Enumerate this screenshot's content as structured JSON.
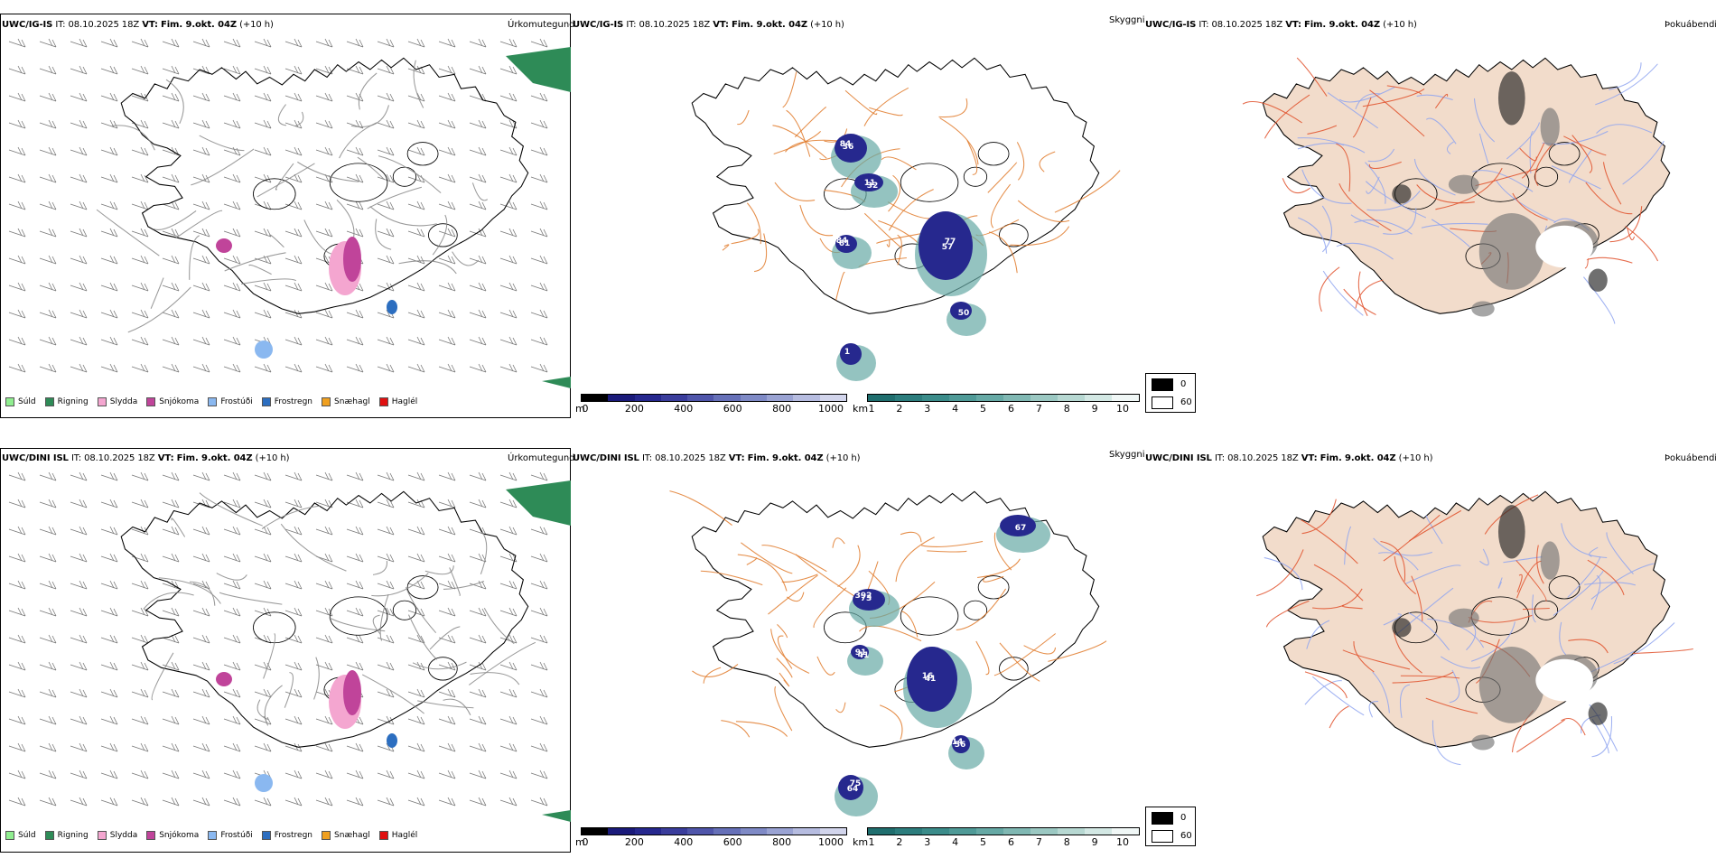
{
  "rows": [
    {
      "model": "UWC/IG-IS",
      "it_label": "IT:",
      "it_value": "08.10.2025 18Z",
      "vt_label": "VT:",
      "vt_value": "Fim. 9.okt. 04Z",
      "lead": "(+10 h)",
      "numbers": [
        "84",
        "11",
        "84",
        "57",
        "1",
        "50",
        "36",
        "32",
        "61",
        "77"
      ]
    },
    {
      "model": "UWC/DINI ISL",
      "it_label": "IT:",
      "it_value": "08.10.2025 18Z",
      "vt_label": "VT:",
      "vt_value": "Fim. 9.okt. 04Z",
      "lead": "(+10 h)",
      "numbers": [
        "392",
        "91",
        "16",
        "64",
        "14",
        "67",
        "73",
        "41",
        "41",
        "75",
        "56"
      ]
    }
  ],
  "panel_labels": {
    "precip_type": "Úrkomutegund",
    "ceiling": "Skyggni",
    "fog": "Þokuábendi"
  },
  "precip_legend": [
    {
      "label": "Súld",
      "color": "#90ee90"
    },
    {
      "label": "Rigning",
      "color": "#2e8b57"
    },
    {
      "label": "Slydda",
      "color": "#f4a6d0"
    },
    {
      "label": "Snjókoma",
      "color": "#c0449a"
    },
    {
      "label": "Frostúði",
      "color": "#8ab8f0"
    },
    {
      "label": "Frostregn",
      "color": "#2c6ec0"
    },
    {
      "label": "Snæhagl",
      "color": "#f0a020"
    },
    {
      "label": "Haglél",
      "color": "#e01010"
    }
  ],
  "ceiling_bar": {
    "unit": "m",
    "ticks": [
      "0",
      "200",
      "400",
      "600",
      "800",
      "1000"
    ],
    "colors": [
      "#000000",
      "#1a1a7a",
      "#26288e",
      "#3a3d9c",
      "#4f55aa",
      "#6670b8",
      "#7f8ac6",
      "#9aa3d3",
      "#b6bce0",
      "#d2d5ec"
    ]
  },
  "visibility_bar": {
    "unit": "km",
    "ticks": [
      "1",
      "2",
      "3",
      "4",
      "5",
      "6",
      "7",
      "8",
      "9",
      "10"
    ],
    "colors": [
      "#1f6e6e",
      "#2c7d7d",
      "#3b8c8a",
      "#4f9a97",
      "#66a9a5",
      "#80b8b3",
      "#9bc8c2",
      "#b7d8d2",
      "#d3e8e4",
      "#f0f7f6"
    ]
  },
  "fog_legend": {
    "values": [
      "0",
      "60"
    ],
    "colors": [
      "#000000",
      "#ffffff"
    ]
  }
}
